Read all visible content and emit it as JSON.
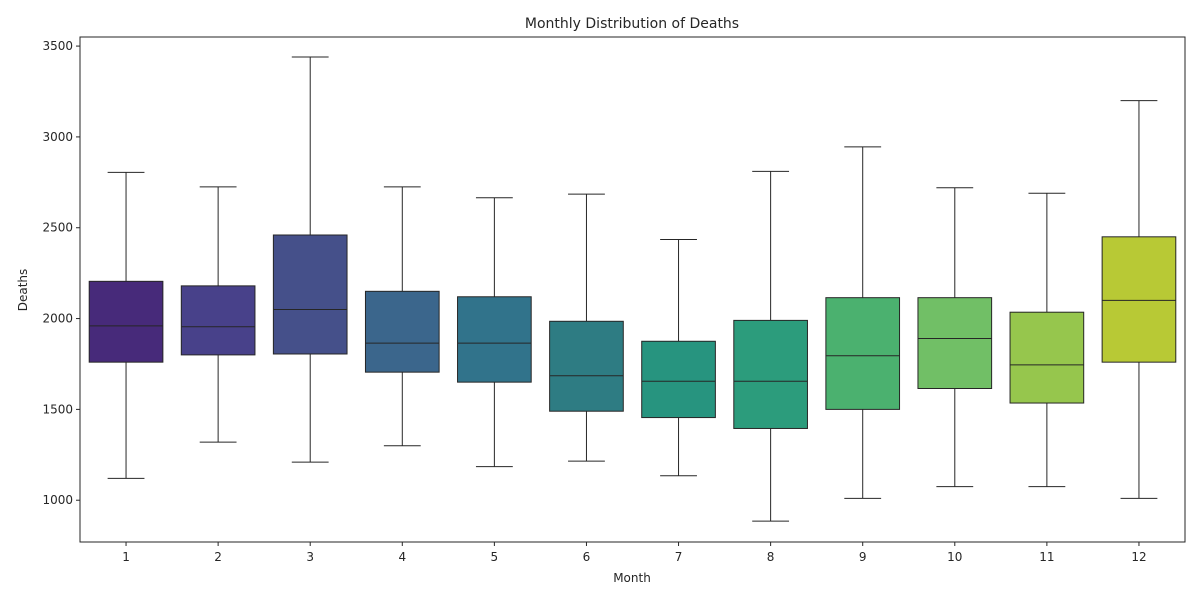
{
  "chart_data": {
    "type": "box",
    "title": "Monthly Distribution of Deaths",
    "xlabel": "Month",
    "ylabel": "Deaths",
    "ylim": [
      770,
      3550
    ],
    "yticks": [
      1000,
      1500,
      2000,
      2500,
      3000,
      3500
    ],
    "grid": false,
    "legend": "none",
    "categories": [
      "1",
      "2",
      "3",
      "4",
      "5",
      "6",
      "7",
      "8",
      "9",
      "10",
      "11",
      "12"
    ],
    "boxes": [
      {
        "category": "1",
        "whisker_low": 1120,
        "q1": 1760,
        "median": 1960,
        "q3": 2205,
        "whisker_high": 2805,
        "color": "#472a7a"
      },
      {
        "category": "2",
        "whisker_low": 1320,
        "q1": 1800,
        "median": 1955,
        "q3": 2180,
        "whisker_high": 2725,
        "color": "#48418a"
      },
      {
        "category": "3",
        "whisker_low": 1210,
        "q1": 1805,
        "median": 2050,
        "q3": 2460,
        "whisker_high": 3440,
        "color": "#45508a"
      },
      {
        "category": "4",
        "whisker_low": 1300,
        "q1": 1705,
        "median": 1865,
        "q3": 2150,
        "whisker_high": 2725,
        "color": "#3b668c"
      },
      {
        "category": "5",
        "whisker_low": 1185,
        "q1": 1650,
        "median": 1865,
        "q3": 2120,
        "whisker_high": 2665,
        "color": "#31738b"
      },
      {
        "category": "6",
        "whisker_low": 1215,
        "q1": 1490,
        "median": 1685,
        "q3": 1985,
        "whisker_high": 2685,
        "color": "#2e7c83"
      },
      {
        "category": "7",
        "whisker_low": 1135,
        "q1": 1455,
        "median": 1655,
        "q3": 1875,
        "whisker_high": 2435,
        "color": "#27947f"
      },
      {
        "category": "8",
        "whisker_low": 885,
        "q1": 1395,
        "median": 1655,
        "q3": 1990,
        "whisker_high": 2810,
        "color": "#2c9c7c"
      },
      {
        "category": "9",
        "whisker_low": 1010,
        "q1": 1500,
        "median": 1795,
        "q3": 2115,
        "whisker_high": 2945,
        "color": "#4bb16f"
      },
      {
        "category": "10",
        "whisker_low": 1075,
        "q1": 1615,
        "median": 1890,
        "q3": 2115,
        "whisker_high": 2720,
        "color": "#71bf66"
      },
      {
        "category": "11",
        "whisker_low": 1075,
        "q1": 1535,
        "median": 1745,
        "q3": 2035,
        "whisker_high": 2690,
        "color": "#96c64d"
      },
      {
        "category": "12",
        "whisker_low": 1010,
        "q1": 1760,
        "median": 2100,
        "q3": 2450,
        "whisker_high": 3200,
        "color": "#b8c935"
      }
    ]
  }
}
